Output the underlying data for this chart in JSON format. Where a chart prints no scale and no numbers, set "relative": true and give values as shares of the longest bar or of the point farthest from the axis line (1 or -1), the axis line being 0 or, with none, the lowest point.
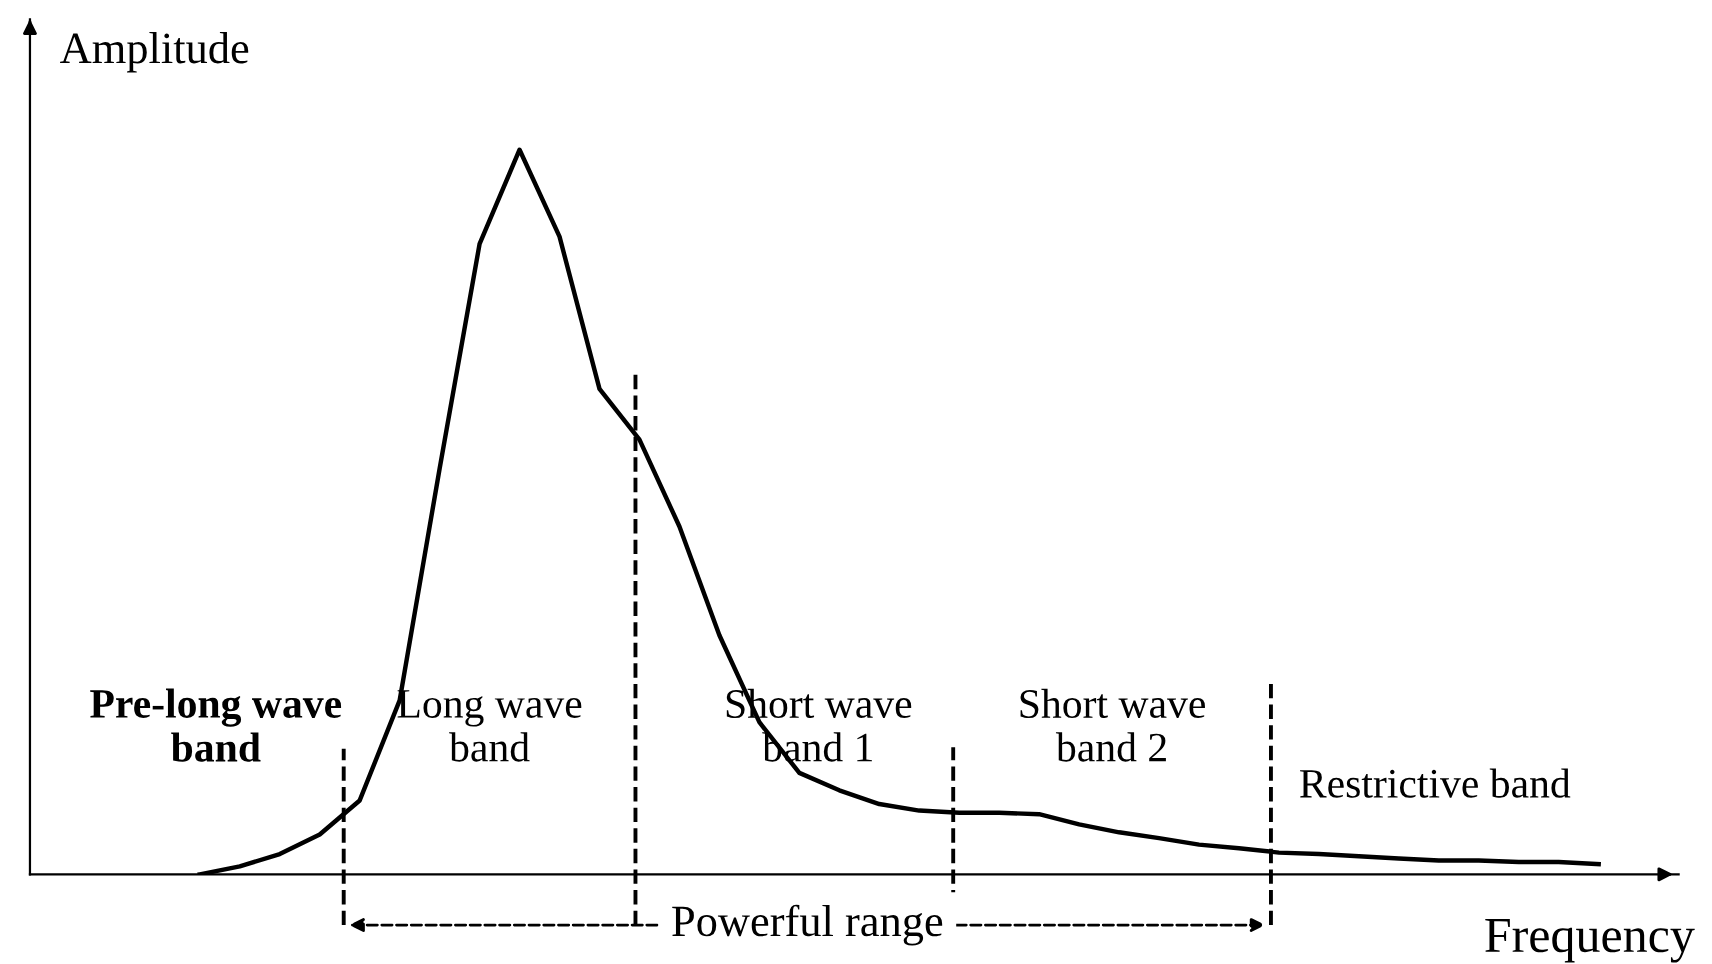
{
  "chart_data": {
    "type": "line",
    "relative": true,
    "xlabel": "Frequency",
    "ylabel": "Amplitude",
    "categories": [
      null,
      null,
      null,
      null,
      null,
      null,
      null,
      null,
      null,
      null,
      null,
      null,
      null,
      null,
      null,
      null,
      null,
      null,
      null,
      null,
      null,
      null,
      null,
      null,
      null,
      null,
      null,
      null,
      null,
      null,
      null,
      null,
      null,
      null,
      null,
      null
    ],
    "series": [
      {
        "color": "#000000",
        "values": [
          0,
          0.011,
          0.028,
          0.055,
          0.102,
          0.24,
          0.56,
          0.87,
          1.0,
          0.88,
          0.67,
          0.6,
          0.48,
          0.33,
          0.21,
          0.14,
          0.116,
          0.097,
          0.088,
          0.085,
          0.085,
          0.083,
          0.069,
          0.058,
          0.05,
          0.041,
          0.036,
          0.03,
          0.028,
          0.025,
          0.022,
          0.019,
          0.019,
          0.017,
          0.017,
          0.014
        ]
      }
    ],
    "annotations": [
      "Pre-long wave\nband",
      "Long wave\nband",
      "Short wave\nband 1",
      "Short wave\nband 2",
      "Restrictive band",
      "Powerful range"
    ],
    "marker": "none",
    "line_style": "solid"
  }
}
